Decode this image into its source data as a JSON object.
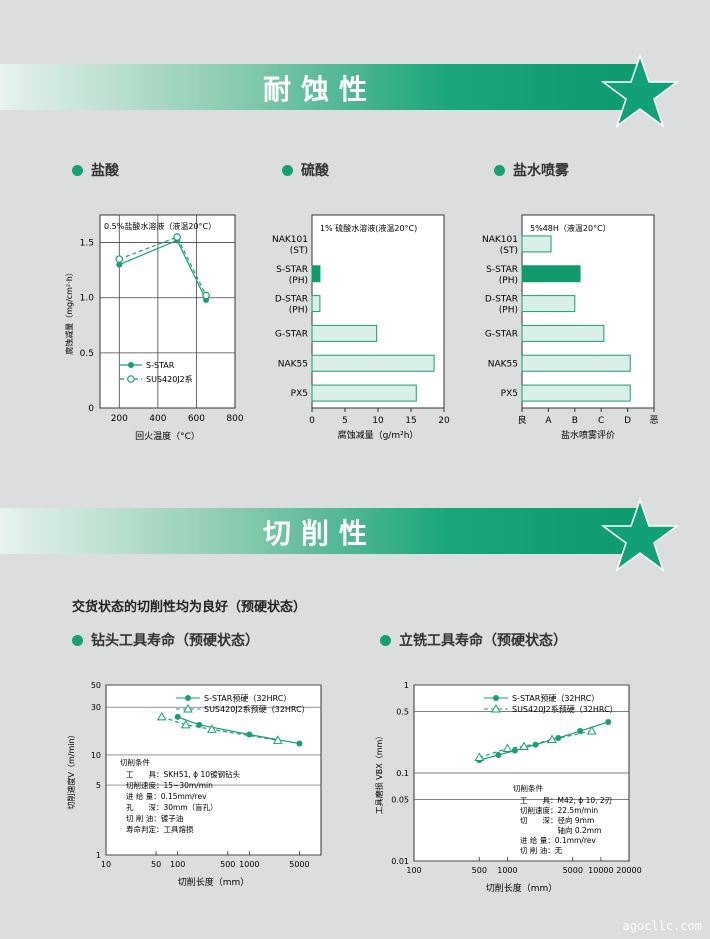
{
  "banner1": {
    "title": "耐蚀性"
  },
  "banner2": {
    "title": "切削性"
  },
  "section_titles": {
    "hcl": "盐酸",
    "h2so4": "硫酸",
    "salt": "盐水喷雾"
  },
  "intro": "交货状态的切削性均为良好（预硬状态）",
  "section_titles2": {
    "drill": "钻头工具寿命（预硬状态）",
    "mill": "立铣工具寿命（预硬状态）"
  },
  "watermark": "agocllc.com",
  "colors": {
    "accent": "#15a070",
    "bar_fill": "#d9f0e6",
    "bar_dark": "#129a6c"
  },
  "chart_data": [
    {
      "id": "hcl",
      "type": "line",
      "title": "0.5%盐酸水溶液（液温20°C）",
      "xlabel": "回火温度（°C）",
      "ylabel": "腐蚀减量（mg/cm²·h）",
      "xlim": [
        100,
        800
      ],
      "ylim": [
        0,
        1.75
      ],
      "xticks": [
        "200",
        "400",
        "600",
        "800"
      ],
      "yticks": [
        "0",
        "0.5",
        "1.0",
        "1.5"
      ],
      "series": [
        {
          "name": "S-STAR",
          "marker": "filled",
          "x": [
            200,
            500,
            650
          ],
          "y": [
            1.3,
            1.52,
            0.98
          ]
        },
        {
          "name": "SUS420J2系",
          "marker": "open",
          "x": [
            200,
            500,
            650
          ],
          "y": [
            1.35,
            1.55,
            1.02
          ]
        }
      ]
    },
    {
      "id": "h2so4",
      "type": "bar",
      "title": "1% 硫酸水溶液(液温20°C)",
      "xlabel": "腐蚀减量（g/m²h）",
      "xlim": [
        0,
        20
      ],
      "xticks": [
        "0",
        "5",
        "10",
        "15",
        "20"
      ],
      "categories": [
        [
          "NAK101",
          "(ST)"
        ],
        [
          "S-STAR",
          "(PH)"
        ],
        [
          "D-STAR",
          "(PH)"
        ],
        [
          "G-STAR"
        ],
        [
          "NAK55"
        ],
        [
          "PX5"
        ]
      ],
      "values": [
        0,
        1.2,
        1.2,
        9.8,
        18.5,
        15.8
      ],
      "highlight": [
        false,
        true,
        false,
        false,
        false,
        false
      ]
    },
    {
      "id": "salt",
      "type": "bar",
      "title": "5%48H（液温20°C）",
      "xlabel": "盐水喷雾评价",
      "xticks": [
        "良",
        "A",
        "B",
        "C",
        "D",
        "恶"
      ],
      "categories": [
        [
          "NAK101",
          "(ST)"
        ],
        [
          "S-STAR",
          "(PH)"
        ],
        [
          "D-STAR",
          "(PH)"
        ],
        [
          "G-STAR"
        ],
        [
          "NAK55"
        ],
        [
          "PX5"
        ]
      ],
      "values": [
        1.1,
        2.2,
        2.0,
        3.1,
        4.1,
        4.1
      ],
      "highlight": [
        false,
        true,
        false,
        false,
        false,
        false
      ]
    },
    {
      "id": "drill",
      "type": "line",
      "log": "xy",
      "xlabel": "切削长度（mm）",
      "ylabel": "切削速度V（m/min）",
      "xlim": [
        10,
        10000
      ],
      "ylim": [
        1,
        50
      ],
      "xticks": [
        "10",
        "50",
        "100",
        "500",
        "1000",
        "5000"
      ],
      "yticks": [
        "1",
        "5",
        "10",
        "30",
        "50"
      ],
      "series": [
        {
          "name": "S-STAR预硬（32HRC）",
          "marker": "filled",
          "x": [
            100,
            200,
            1000,
            5000
          ],
          "y": [
            24,
            20,
            16,
            13
          ]
        },
        {
          "name": "SUS420J2系预硬（32HRC）",
          "marker": "triangle",
          "x": [
            60,
            130,
            300,
            2500
          ],
          "y": [
            24,
            20,
            18,
            14
          ]
        }
      ],
      "conditions_title": "切削条件",
      "conditions": [
        "工　　具：SKH51, ϕ 10镀钢钻头",
        "切削速度：15~30m/min",
        "进 给 量：0.15mm/rev",
        "孔　　深：30mm（盲孔）",
        "切 削 油：镀子油",
        "寿命判定：工具熔损"
      ]
    },
    {
      "id": "mill",
      "type": "line",
      "log": "xy",
      "xlabel": "切削长度（mm）",
      "ylabel": "工具磨损 VBX（mm）",
      "xlim": [
        100,
        20000
      ],
      "ylim": [
        0.01,
        1
      ],
      "xticks": [
        "100",
        "500",
        "1000",
        "5000",
        "10000",
        "20000"
      ],
      "yticks": [
        "0.01",
        "0.05",
        "0.1",
        "0.5",
        "1"
      ],
      "series": [
        {
          "name": "S-STAR预硬（32HRC）",
          "marker": "filled",
          "x": [
            500,
            800,
            1200,
            2000,
            3500,
            6000,
            12000
          ],
          "y": [
            0.14,
            0.16,
            0.18,
            0.21,
            0.25,
            0.3,
            0.38
          ]
        },
        {
          "name": "SUS420J2系预硬（32HRC）",
          "marker": "triangle",
          "x": [
            500,
            1000,
            1500,
            3000,
            8000
          ],
          "y": [
            0.15,
            0.19,
            0.2,
            0.24,
            0.3
          ]
        }
      ],
      "conditions_title": "切削条件",
      "conditions": [
        "工　　具：M42, ϕ 10, 2刃",
        "切削速度：22.5m/min",
        "切　　深：径向 9mm",
        "　　　　　轴向 0.2mm",
        "进 给 量：0.1mm/rev",
        "切 削 油：无"
      ]
    }
  ]
}
